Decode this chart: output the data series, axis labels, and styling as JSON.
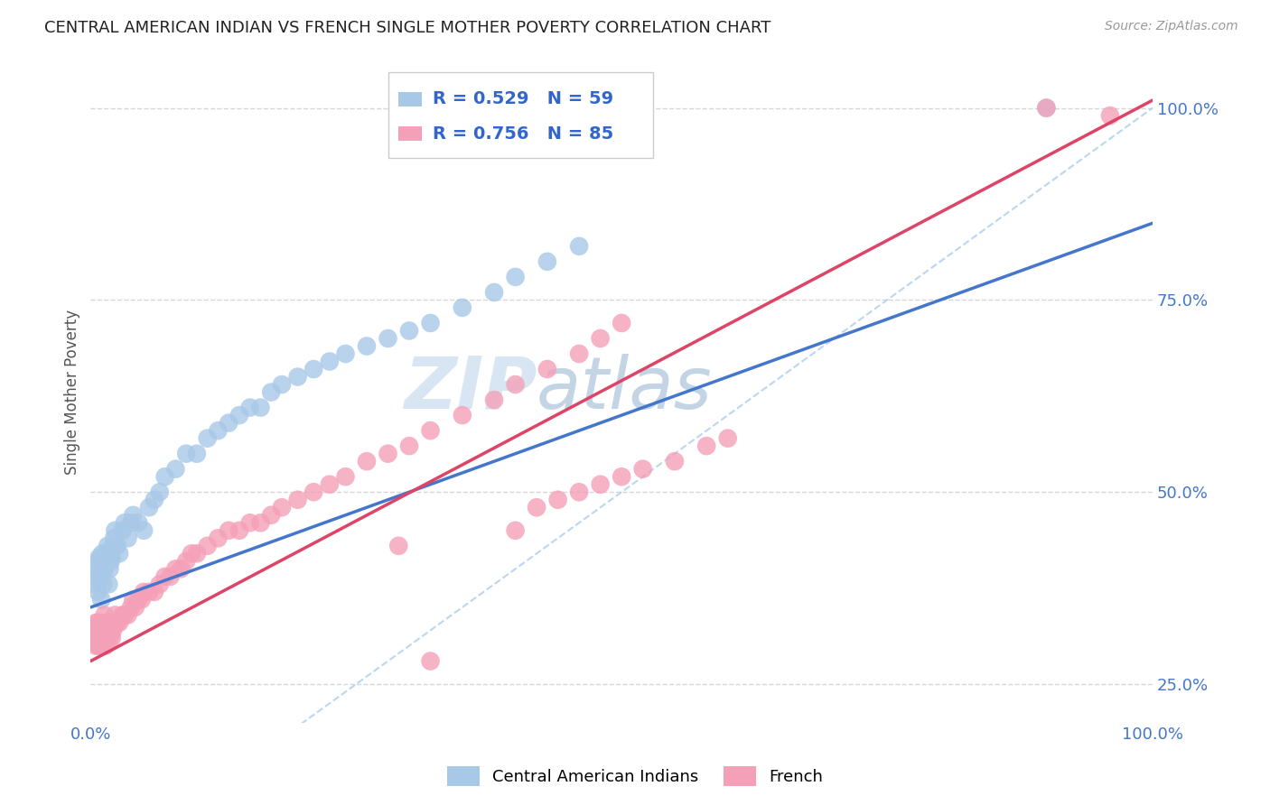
{
  "title": "CENTRAL AMERICAN INDIAN VS FRENCH SINGLE MOTHER POVERTY CORRELATION CHART",
  "source": "Source: ZipAtlas.com",
  "ylabel": "Single Mother Poverty",
  "blue_R": "0.529",
  "blue_N": "59",
  "pink_R": "0.756",
  "pink_N": "85",
  "blue_color": "#A8C8E8",
  "pink_color": "#F4A0B8",
  "blue_line_color": "#4477CC",
  "pink_line_color": "#DD4466",
  "diag_color": "#AACCEE",
  "legend_label_blue": "Central American Indians",
  "legend_label_pink": "French",
  "watermark_zip": "ZIP",
  "watermark_atlas": "atlas",
  "tick_color": "#4477CC",
  "grid_color": "#CCCCCC",
  "background_color": "#FFFFFF",
  "axis_label_color": "#555555",
  "blue_intercept": 0.35,
  "blue_slope": 0.5,
  "pink_intercept": 0.28,
  "pink_slope": 0.73,
  "blue_x": [
    0.004,
    0.005,
    0.006,
    0.007,
    0.007,
    0.008,
    0.009,
    0.01,
    0.011,
    0.012,
    0.013,
    0.014,
    0.015,
    0.016,
    0.017,
    0.018,
    0.019,
    0.02,
    0.021,
    0.022,
    0.023,
    0.025,
    0.027,
    0.03,
    0.032,
    0.035,
    0.038,
    0.04,
    0.045,
    0.05,
    0.055,
    0.06,
    0.065,
    0.07,
    0.08,
    0.09,
    0.1,
    0.11,
    0.12,
    0.13,
    0.14,
    0.15,
    0.16,
    0.17,
    0.18,
    0.195,
    0.21,
    0.225,
    0.24,
    0.26,
    0.28,
    0.3,
    0.32,
    0.35,
    0.38,
    0.4,
    0.43,
    0.46,
    0.9
  ],
  "blue_y": [
    0.38,
    0.39,
    0.4,
    0.37,
    0.41,
    0.415,
    0.39,
    0.36,
    0.42,
    0.38,
    0.4,
    0.41,
    0.42,
    0.43,
    0.38,
    0.4,
    0.41,
    0.415,
    0.43,
    0.44,
    0.45,
    0.43,
    0.42,
    0.45,
    0.46,
    0.44,
    0.46,
    0.47,
    0.46,
    0.45,
    0.48,
    0.49,
    0.5,
    0.52,
    0.53,
    0.55,
    0.55,
    0.57,
    0.58,
    0.59,
    0.6,
    0.61,
    0.61,
    0.63,
    0.64,
    0.65,
    0.66,
    0.67,
    0.68,
    0.69,
    0.7,
    0.71,
    0.72,
    0.74,
    0.76,
    0.78,
    0.8,
    0.82,
    1.0
  ],
  "pink_x": [
    0.003,
    0.004,
    0.005,
    0.005,
    0.006,
    0.007,
    0.007,
    0.008,
    0.008,
    0.009,
    0.01,
    0.01,
    0.011,
    0.012,
    0.013,
    0.013,
    0.014,
    0.015,
    0.015,
    0.016,
    0.017,
    0.018,
    0.019,
    0.02,
    0.021,
    0.022,
    0.023,
    0.025,
    0.027,
    0.03,
    0.032,
    0.035,
    0.038,
    0.04,
    0.042,
    0.045,
    0.048,
    0.05,
    0.055,
    0.06,
    0.065,
    0.07,
    0.075,
    0.08,
    0.085,
    0.09,
    0.095,
    0.1,
    0.11,
    0.12,
    0.13,
    0.14,
    0.15,
    0.16,
    0.17,
    0.18,
    0.195,
    0.21,
    0.225,
    0.24,
    0.26,
    0.28,
    0.3,
    0.32,
    0.35,
    0.38,
    0.4,
    0.43,
    0.46,
    0.29,
    0.32,
    0.48,
    0.5,
    0.9,
    0.96,
    0.4,
    0.42,
    0.44,
    0.46,
    0.48,
    0.5,
    0.52,
    0.55,
    0.58,
    0.6
  ],
  "pink_y": [
    0.31,
    0.32,
    0.3,
    0.33,
    0.31,
    0.3,
    0.33,
    0.31,
    0.33,
    0.3,
    0.31,
    0.33,
    0.3,
    0.31,
    0.32,
    0.34,
    0.3,
    0.31,
    0.33,
    0.31,
    0.32,
    0.31,
    0.32,
    0.31,
    0.32,
    0.33,
    0.34,
    0.33,
    0.33,
    0.34,
    0.34,
    0.34,
    0.35,
    0.36,
    0.35,
    0.36,
    0.36,
    0.37,
    0.37,
    0.37,
    0.38,
    0.39,
    0.39,
    0.4,
    0.4,
    0.41,
    0.42,
    0.42,
    0.43,
    0.44,
    0.45,
    0.45,
    0.46,
    0.46,
    0.47,
    0.48,
    0.49,
    0.5,
    0.51,
    0.52,
    0.54,
    0.55,
    0.56,
    0.58,
    0.6,
    0.62,
    0.64,
    0.66,
    0.68,
    0.43,
    0.28,
    0.7,
    0.72,
    1.0,
    0.99,
    0.45,
    0.48,
    0.49,
    0.5,
    0.51,
    0.52,
    0.53,
    0.54,
    0.56,
    0.57
  ]
}
